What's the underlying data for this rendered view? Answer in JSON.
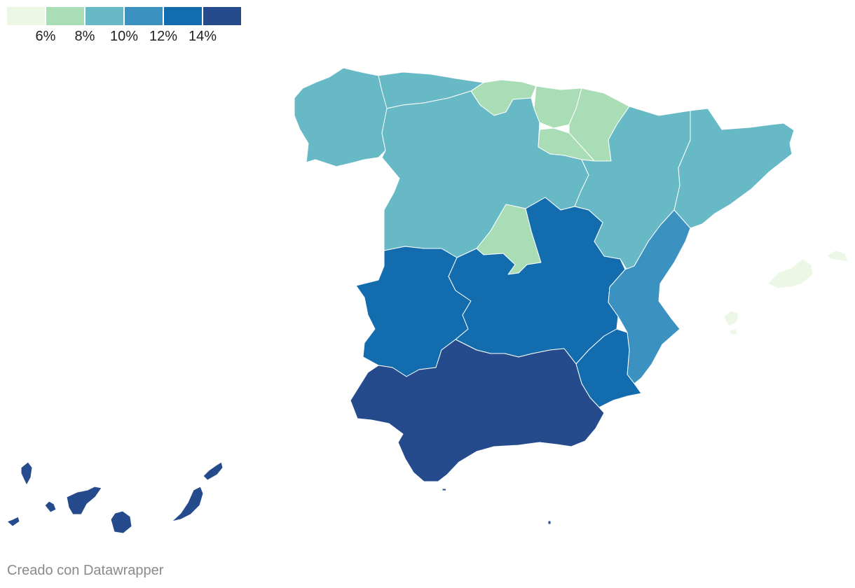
{
  "legend": {
    "bins": [
      {
        "color": "#edf7e6"
      },
      {
        "color": "#a8ddb5"
      },
      {
        "color": "#67b9c6"
      },
      {
        "color": "#3b92c1"
      },
      {
        "color": "#136cae"
      },
      {
        "color": "#254b8c"
      }
    ],
    "ticks": [
      "6%",
      "8%",
      "10%",
      "12%",
      "14%"
    ]
  },
  "map_data": {
    "type": "choropleth",
    "regions": [
      {
        "id": "galicia",
        "bin": 2
      },
      {
        "id": "asturias",
        "bin": 2
      },
      {
        "id": "cantabria",
        "bin": 1
      },
      {
        "id": "pais-vasco",
        "bin": 1
      },
      {
        "id": "navarra",
        "bin": 1
      },
      {
        "id": "la-rioja",
        "bin": 1
      },
      {
        "id": "castilla-y-leon",
        "bin": 2
      },
      {
        "id": "aragon",
        "bin": 2
      },
      {
        "id": "cataluna",
        "bin": 2
      },
      {
        "id": "madrid",
        "bin": 1
      },
      {
        "id": "extremadura",
        "bin": 4
      },
      {
        "id": "castilla-la-mancha",
        "bin": 4
      },
      {
        "id": "comunidad-valenciana",
        "bin": 3
      },
      {
        "id": "murcia",
        "bin": 4
      },
      {
        "id": "andalucia",
        "bin": 5
      },
      {
        "id": "baleares",
        "bin": 0
      },
      {
        "id": "canarias",
        "bin": 5
      },
      {
        "id": "ceuta",
        "bin": 5
      },
      {
        "id": "melilla",
        "bin": 5
      }
    ]
  },
  "footer": {
    "credit": "Creado con Datawrapper"
  }
}
